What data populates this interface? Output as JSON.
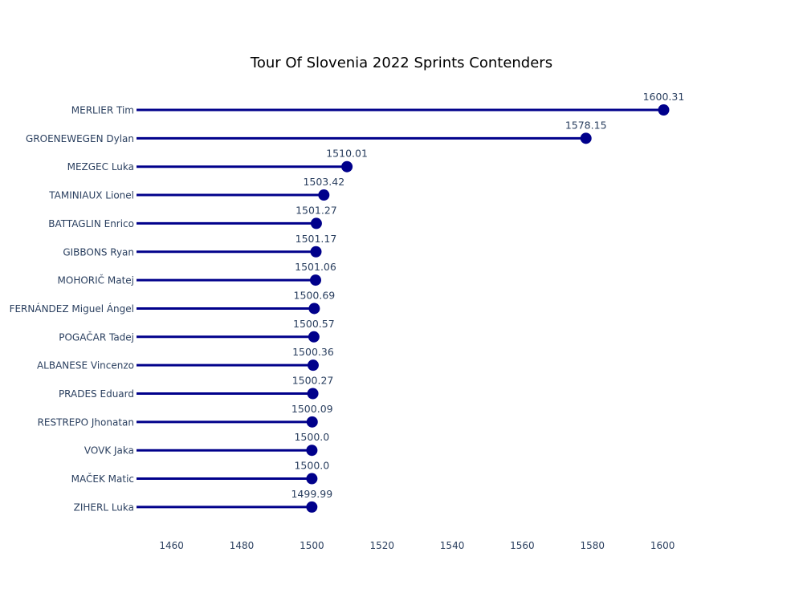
{
  "chart_data": {
    "type": "lollipop",
    "title": "Tour Of Slovenia 2022 Sprints Contenders",
    "xlabel": "",
    "ylabel": "",
    "xlim": [
      1450,
      1616
    ],
    "x_ticks": [
      1460,
      1480,
      1500,
      1520,
      1540,
      1560,
      1580,
      1600
    ],
    "grid": false,
    "categories": [
      "MERLIER Tim",
      "GROENEWEGEN Dylan",
      "MEZGEC Luka",
      "TAMINIAUX Lionel",
      "BATTAGLIN Enrico",
      "GIBBONS Ryan",
      "MOHORIČ Matej",
      "FERNÁNDEZ Miguel Ángel",
      "POGAČAR Tadej",
      "ALBANESE Vincenzo",
      "PRADES Eduard",
      "RESTREPO Jhonatan",
      "VOVK Jaka",
      "MAČEK Matic",
      "ZIHERL Luka"
    ],
    "values": [
      1600.31,
      1578.15,
      1510.01,
      1503.42,
      1501.27,
      1501.17,
      1501.06,
      1500.69,
      1500.57,
      1500.36,
      1500.27,
      1500.09,
      1500.0,
      1500.0,
      1499.99
    ],
    "value_labels": [
      "1600.31",
      "1578.15",
      "1510.01",
      "1503.42",
      "1501.27",
      "1501.17",
      "1501.06",
      "1500.69",
      "1500.57",
      "1500.36",
      "1500.27",
      "1500.09",
      "1500.0",
      "1500.0",
      "1499.99"
    ],
    "colors": {
      "marker": "#00008B",
      "text": "#2A3F5F",
      "title": "#000000"
    }
  }
}
